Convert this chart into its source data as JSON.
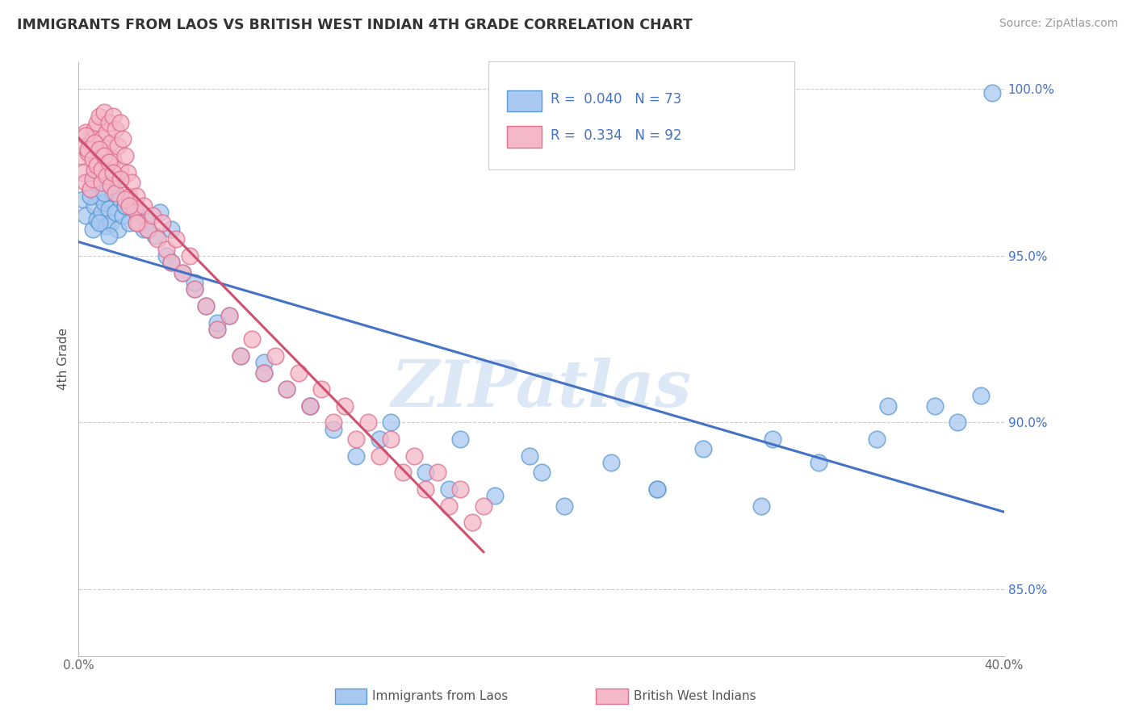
{
  "title": "IMMIGRANTS FROM LAOS VS BRITISH WEST INDIAN 4TH GRADE CORRELATION CHART",
  "source": "Source: ZipAtlas.com",
  "ylabel": "4th Grade",
  "xlim": [
    0.0,
    0.4
  ],
  "ylim": [
    0.83,
    1.008
  ],
  "yticks": [
    0.85,
    0.9,
    0.95,
    1.0
  ],
  "yticklabels": [
    "85.0%",
    "90.0%",
    "95.0%",
    "100.0%"
  ],
  "xtick_positions": [
    0.0,
    0.1,
    0.2,
    0.3,
    0.4
  ],
  "xtick_labels": [
    "0.0%",
    "",
    "",
    "",
    "40.0%"
  ],
  "legend_r_blue": "R =  0.040",
  "legend_n_blue": "N = 73",
  "legend_r_pink": "R =  0.334",
  "legend_n_pink": "N = 92",
  "blue_face": "#A8C8F0",
  "blue_edge": "#5B9BD5",
  "pink_face": "#F4B8C8",
  "pink_edge": "#E07090",
  "blue_line": "#4472C4",
  "pink_line": "#D05070",
  "watermark": "ZIPatlas",
  "blue_scatter_x": [
    0.002,
    0.003,
    0.005,
    0.006,
    0.007,
    0.008,
    0.009,
    0.01,
    0.011,
    0.012,
    0.013,
    0.014,
    0.015,
    0.016,
    0.017,
    0.018,
    0.019,
    0.02,
    0.022,
    0.025,
    0.028,
    0.03,
    0.033,
    0.035,
    0.038,
    0.04,
    0.045,
    0.05,
    0.055,
    0.06,
    0.065,
    0.07,
    0.08,
    0.09,
    0.1,
    0.11,
    0.12,
    0.135,
    0.15,
    0.165,
    0.18,
    0.195,
    0.21,
    0.23,
    0.25,
    0.27,
    0.295,
    0.32,
    0.345,
    0.37,
    0.005,
    0.007,
    0.009,
    0.011,
    0.013,
    0.015,
    0.02,
    0.025,
    0.03,
    0.04,
    0.05,
    0.06,
    0.08,
    0.1,
    0.13,
    0.16,
    0.2,
    0.25,
    0.3,
    0.35,
    0.38,
    0.39,
    0.395
  ],
  "blue_scatter_y": [
    0.967,
    0.962,
    0.97,
    0.958,
    0.965,
    0.961,
    0.968,
    0.963,
    0.966,
    0.959,
    0.964,
    0.96,
    0.969,
    0.963,
    0.958,
    0.967,
    0.962,
    0.965,
    0.96,
    0.963,
    0.958,
    0.961,
    0.956,
    0.963,
    0.95,
    0.958,
    0.945,
    0.94,
    0.935,
    0.928,
    0.932,
    0.92,
    0.918,
    0.91,
    0.905,
    0.898,
    0.89,
    0.9,
    0.885,
    0.895,
    0.878,
    0.89,
    0.875,
    0.888,
    0.88,
    0.892,
    0.875,
    0.888,
    0.895,
    0.905,
    0.968,
    0.972,
    0.96,
    0.969,
    0.956,
    0.972,
    0.965,
    0.96,
    0.958,
    0.948,
    0.942,
    0.93,
    0.915,
    0.905,
    0.895,
    0.88,
    0.885,
    0.88,
    0.895,
    0.905,
    0.9,
    0.908,
    0.999
  ],
  "pink_scatter_x": [
    0.001,
    0.002,
    0.002,
    0.003,
    0.003,
    0.004,
    0.005,
    0.005,
    0.006,
    0.006,
    0.007,
    0.007,
    0.008,
    0.008,
    0.009,
    0.009,
    0.01,
    0.01,
    0.011,
    0.011,
    0.012,
    0.012,
    0.013,
    0.013,
    0.014,
    0.015,
    0.015,
    0.016,
    0.017,
    0.018,
    0.018,
    0.019,
    0.02,
    0.021,
    0.022,
    0.023,
    0.024,
    0.025,
    0.026,
    0.028,
    0.03,
    0.032,
    0.034,
    0.036,
    0.038,
    0.04,
    0.042,
    0.045,
    0.048,
    0.05,
    0.055,
    0.06,
    0.065,
    0.07,
    0.075,
    0.08,
    0.085,
    0.09,
    0.095,
    0.1,
    0.105,
    0.11,
    0.115,
    0.12,
    0.125,
    0.13,
    0.135,
    0.14,
    0.145,
    0.15,
    0.155,
    0.16,
    0.165,
    0.17,
    0.175,
    0.003,
    0.004,
    0.006,
    0.007,
    0.008,
    0.009,
    0.01,
    0.011,
    0.012,
    0.013,
    0.014,
    0.015,
    0.016,
    0.018,
    0.02,
    0.022,
    0.025
  ],
  "pink_scatter_y": [
    0.98,
    0.983,
    0.975,
    0.987,
    0.972,
    0.981,
    0.984,
    0.97,
    0.985,
    0.973,
    0.988,
    0.976,
    0.99,
    0.978,
    0.992,
    0.98,
    0.985,
    0.972,
    0.993,
    0.981,
    0.987,
    0.975,
    0.99,
    0.978,
    0.984,
    0.992,
    0.979,
    0.988,
    0.983,
    0.99,
    0.976,
    0.985,
    0.98,
    0.975,
    0.968,
    0.972,
    0.964,
    0.968,
    0.96,
    0.965,
    0.958,
    0.962,
    0.955,
    0.96,
    0.952,
    0.948,
    0.955,
    0.945,
    0.95,
    0.94,
    0.935,
    0.928,
    0.932,
    0.92,
    0.925,
    0.915,
    0.92,
    0.91,
    0.915,
    0.905,
    0.91,
    0.9,
    0.905,
    0.895,
    0.9,
    0.89,
    0.895,
    0.885,
    0.89,
    0.88,
    0.885,
    0.875,
    0.88,
    0.87,
    0.875,
    0.986,
    0.982,
    0.979,
    0.984,
    0.977,
    0.982,
    0.976,
    0.98,
    0.974,
    0.978,
    0.971,
    0.975,
    0.969,
    0.973,
    0.967,
    0.965,
    0.96
  ]
}
